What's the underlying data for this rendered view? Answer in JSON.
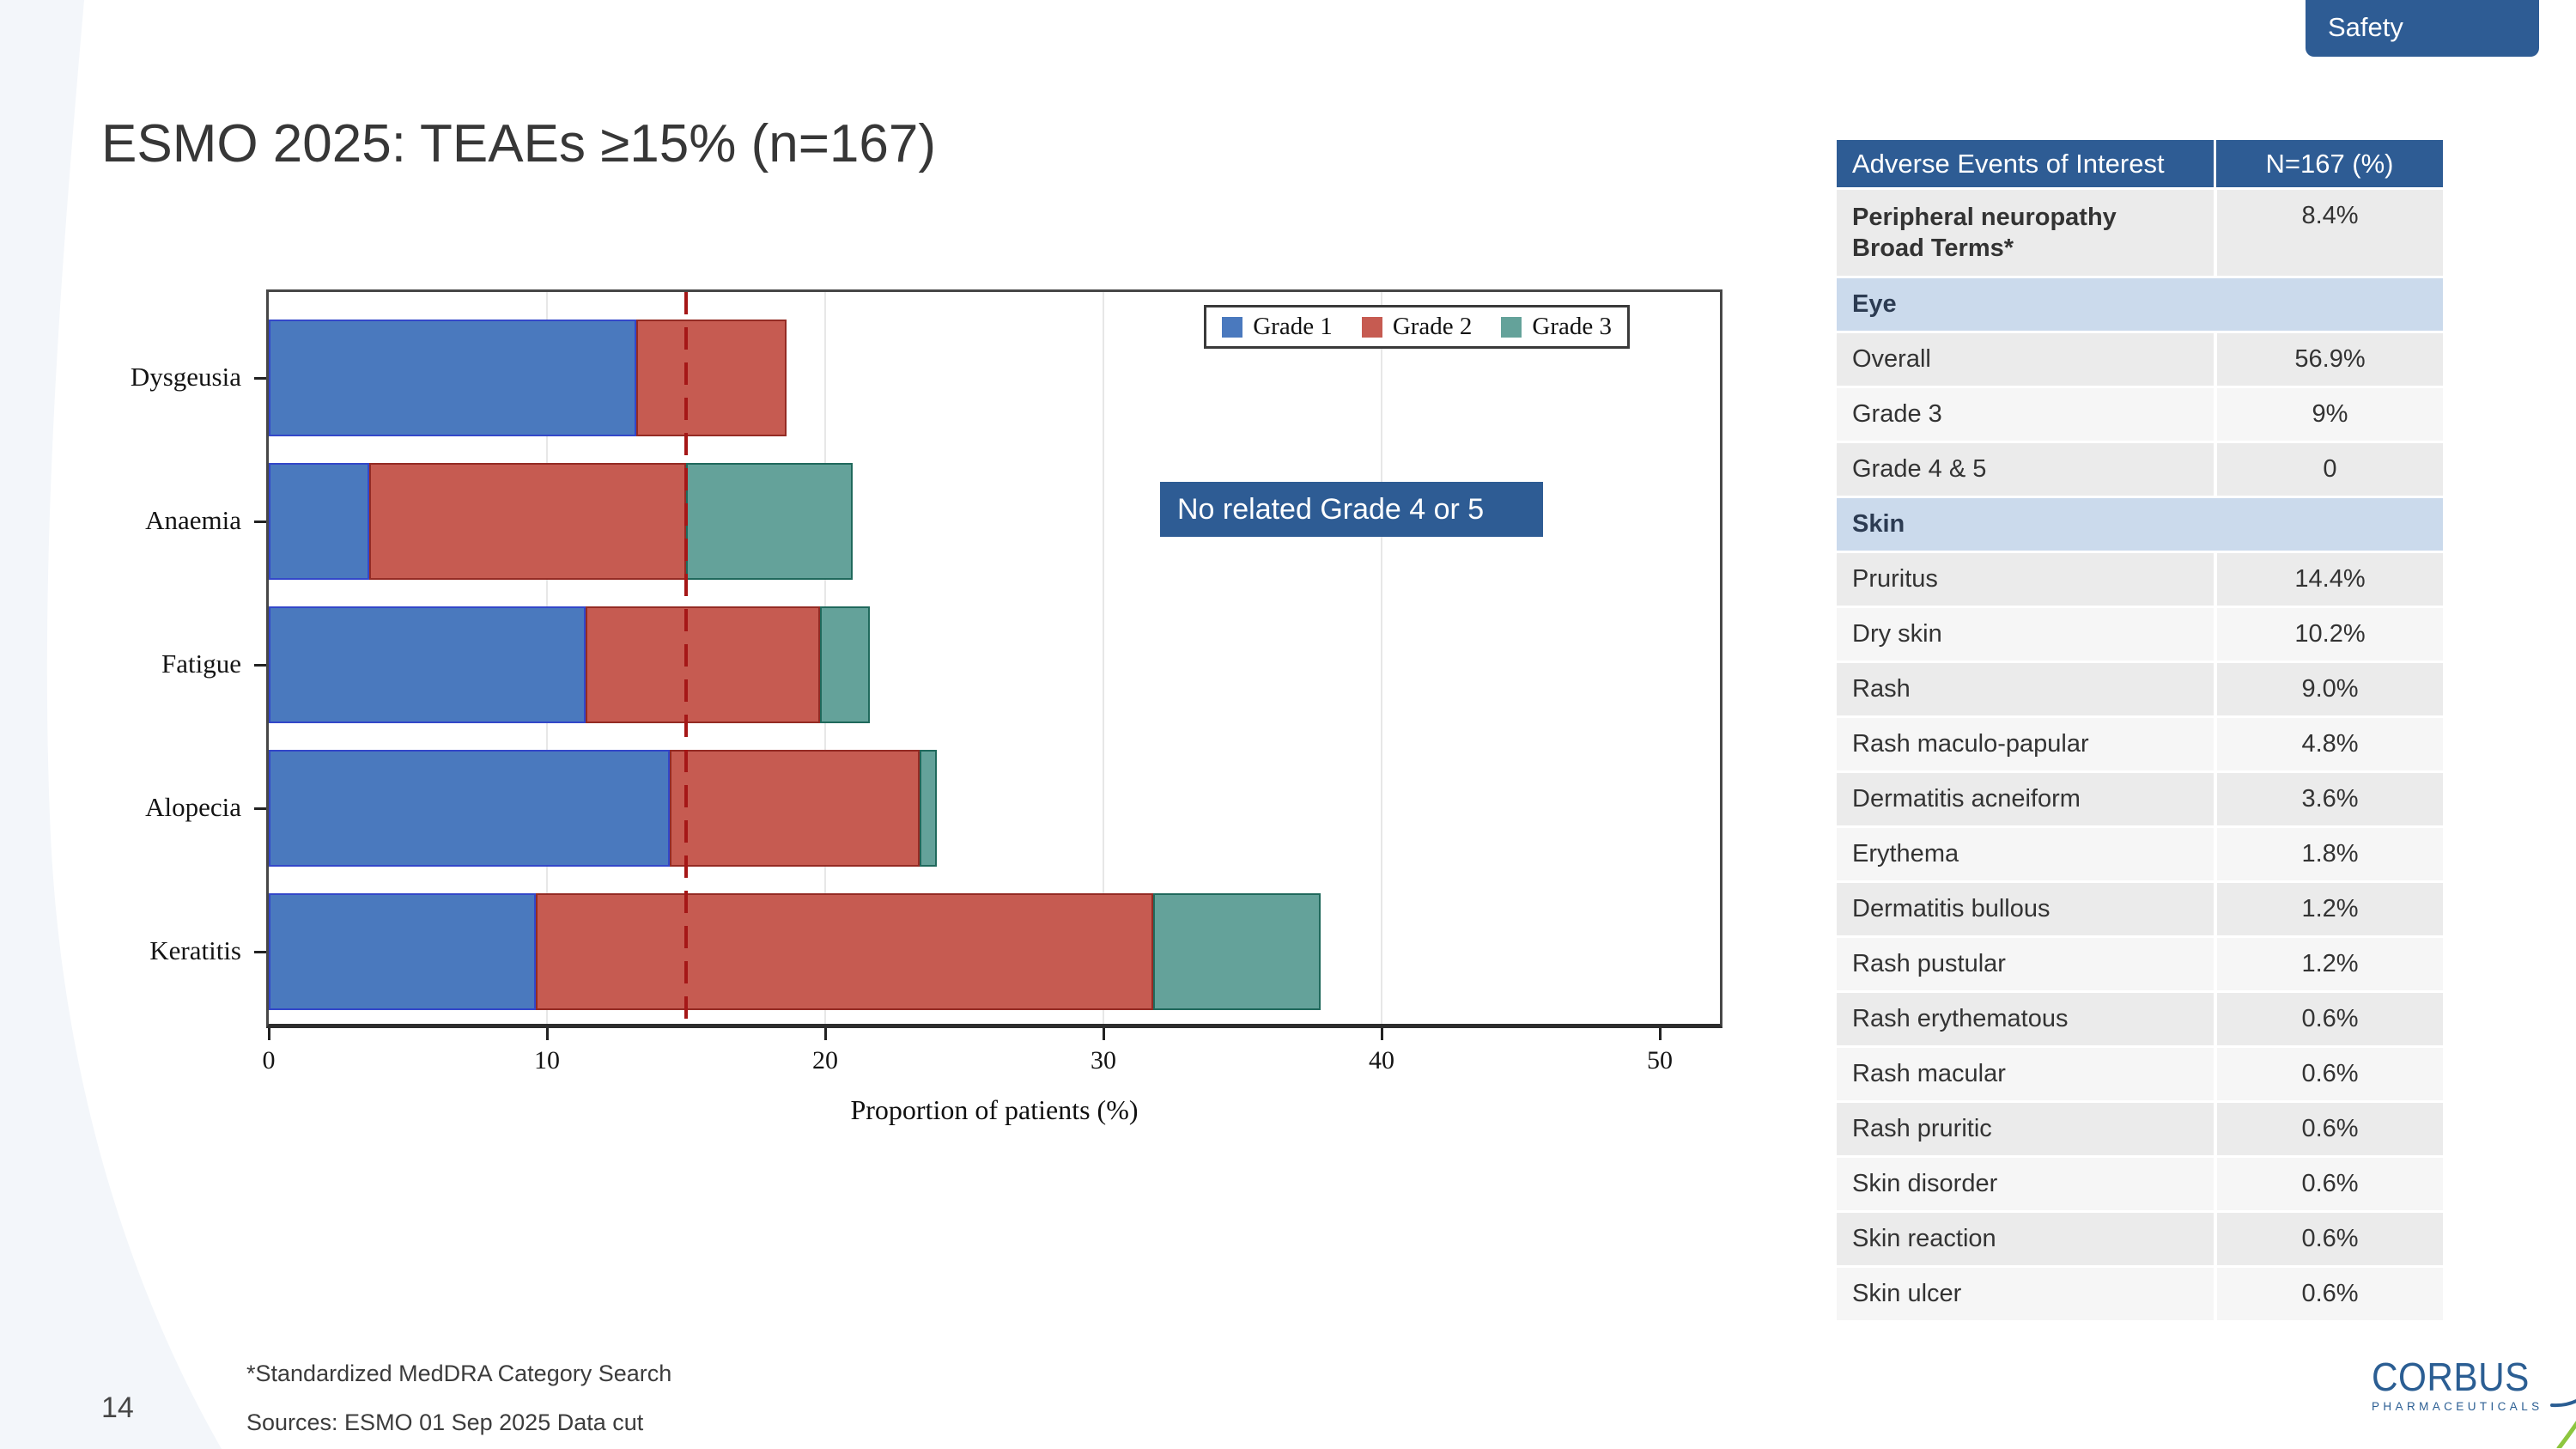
{
  "header": {
    "badge": "Safety",
    "title": "ESMO 2025: TEAEs ≥15% (n=167)"
  },
  "chart_data": {
    "type": "bar",
    "orientation": "horizontal",
    "stacked": true,
    "title": "",
    "xlabel": "Proportion of patients (%)",
    "ylabel": "",
    "xlim": [
      0,
      50
    ],
    "xticks": [
      0,
      10,
      20,
      30,
      40,
      50
    ],
    "grid": "vertical-light",
    "legend_position": "top-right-inside",
    "categories": [
      "Dysgeusia",
      "Anaemia",
      "Fatigue",
      "Alopecia",
      "Keratitis"
    ],
    "series": [
      {
        "name": "Grade 1",
        "fill": "#4A79BE",
        "stroke": "#3347C9",
        "values": [
          13.2,
          3.6,
          11.4,
          14.4,
          9.6
        ]
      },
      {
        "name": "Grade 2",
        "fill": "#C65B51",
        "stroke": "#942B24",
        "values": [
          5.4,
          11.4,
          8.4,
          9.0,
          22.2
        ]
      },
      {
        "name": "Grade 3",
        "fill": "#64A29A",
        "stroke": "#20695C",
        "values": [
          0,
          6.0,
          1.8,
          0.6,
          6.0
        ]
      }
    ],
    "reference_line": {
      "value": 15,
      "color": "#A51717",
      "style": "dashed"
    },
    "annotation": {
      "text": "No related Grade 4 or 5",
      "bg": "#2E5C94"
    }
  },
  "table": {
    "headers": [
      "Adverse Events of Interest",
      "N=167 (%)"
    ],
    "rows": [
      {
        "type": "data",
        "label": "Peripheral neuropathy\nBroad Terms*",
        "value": "8.4%",
        "bold": true
      },
      {
        "type": "section",
        "label": "Eye"
      },
      {
        "type": "data",
        "label": "Overall",
        "value": "56.9%"
      },
      {
        "type": "data",
        "label": "Grade 3",
        "value": "9%"
      },
      {
        "type": "data",
        "label": "Grade 4 & 5",
        "value": "0"
      },
      {
        "type": "section",
        "label": "Skin"
      },
      {
        "type": "data",
        "label": "Pruritus",
        "value": "14.4%"
      },
      {
        "type": "data",
        "label": "Dry skin",
        "value": "10.2%"
      },
      {
        "type": "data",
        "label": "Rash",
        "value": "9.0%"
      },
      {
        "type": "data",
        "label": "Rash maculo-papular",
        "value": "4.8%"
      },
      {
        "type": "data",
        "label": "Dermatitis acneiform",
        "value": "3.6%"
      },
      {
        "type": "data",
        "label": "Erythema",
        "value": "1.8%"
      },
      {
        "type": "data",
        "label": "Dermatitis bullous",
        "value": "1.2%"
      },
      {
        "type": "data",
        "label": "Rash pustular",
        "value": "1.2%"
      },
      {
        "type": "data",
        "label": "Rash erythematous",
        "value": "0.6%"
      },
      {
        "type": "data",
        "label": "Rash macular",
        "value": "0.6%"
      },
      {
        "type": "data",
        "label": "Rash pruritic",
        "value": "0.6%"
      },
      {
        "type": "data",
        "label": "Skin disorder",
        "value": "0.6%"
      },
      {
        "type": "data",
        "label": "Skin reaction",
        "value": "0.6%"
      },
      {
        "type": "data",
        "label": "Skin ulcer",
        "value": "0.6%"
      }
    ],
    "row_colors": {
      "shade_a": "#EBEBEB",
      "shade_b": "#F6F6F6",
      "section_bg": "#CBDAEC"
    }
  },
  "footnotes": {
    "line1": "*Standardized MedDRA Category Search",
    "line2": "Sources: ESMO 01 Sep 2025 Data cut"
  },
  "page_number": "14",
  "logo": {
    "name": "CORBUS",
    "subtext": "PHARMACEUTICALS"
  },
  "colors": {
    "accent_blue": "#2E5C94",
    "swoosh": "#F3F6FA"
  }
}
